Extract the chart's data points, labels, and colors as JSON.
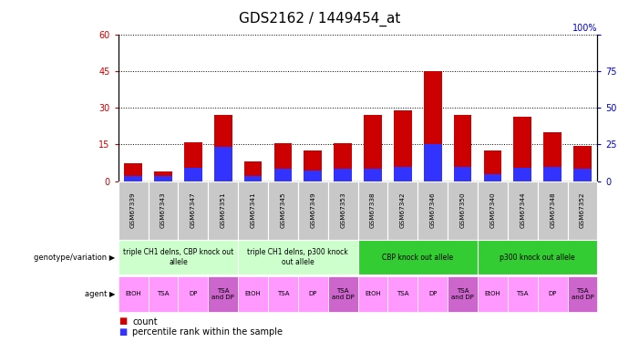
{
  "title": "GDS2162 / 1449454_at",
  "samples": [
    "GSM67339",
    "GSM67343",
    "GSM67347",
    "GSM67351",
    "GSM67341",
    "GSM67345",
    "GSM67349",
    "GSM67353",
    "GSM67338",
    "GSM67342",
    "GSM67346",
    "GSM67350",
    "GSM67340",
    "GSM67344",
    "GSM67348",
    "GSM67352"
  ],
  "count_values": [
    7.5,
    4.0,
    16.0,
    27.0,
    8.0,
    15.5,
    12.5,
    15.5,
    27.0,
    29.0,
    45.0,
    27.0,
    12.5,
    26.5,
    20.0,
    14.5
  ],
  "percentile_values": [
    2.0,
    2.0,
    5.5,
    14.0,
    2.0,
    5.0,
    4.5,
    5.0,
    5.0,
    6.0,
    15.0,
    6.0,
    3.0,
    5.5,
    6.0,
    5.0
  ],
  "left_y_ticks": [
    0,
    15,
    30,
    45,
    60
  ],
  "right_y_ticks": [
    0,
    25,
    50,
    75,
    100
  ],
  "left_ylim": [
    0,
    60
  ],
  "right_ylim": [
    0,
    100
  ],
  "bar_width": 0.6,
  "count_color": "#cc0000",
  "percentile_color": "#3333ff",
  "genotype_groups": [
    {
      "label": "triple CH1 delns, CBP knock out\nallele",
      "start": 0,
      "end": 3,
      "color": "#ccffcc"
    },
    {
      "label": "triple CH1 delns, p300 knock\nout allele",
      "start": 4,
      "end": 7,
      "color": "#ccffcc"
    },
    {
      "label": "CBP knock out allele",
      "start": 8,
      "end": 11,
      "color": "#33cc33"
    },
    {
      "label": "p300 knock out allele",
      "start": 12,
      "end": 15,
      "color": "#33cc33"
    }
  ],
  "agent_labels": [
    "EtOH",
    "TSA",
    "DP",
    "TSA\nand DP",
    "EtOH",
    "TSA",
    "DP",
    "TSA\nand DP",
    "EtOH",
    "TSA",
    "DP",
    "TSA\nand DP",
    "EtOH",
    "TSA",
    "DP",
    "TSA\nand DP"
  ],
  "agent_bg_normal": "#ff99ff",
  "agent_bg_special": "#cc66cc",
  "label_genotype": "genotype/variation",
  "label_agent": "agent",
  "legend_count": "count",
  "legend_percentile": "percentile rank within the sample",
  "tick_label_color_left": "#cc0000",
  "tick_label_color_right": "#0000cc",
  "title_fontsize": 11
}
